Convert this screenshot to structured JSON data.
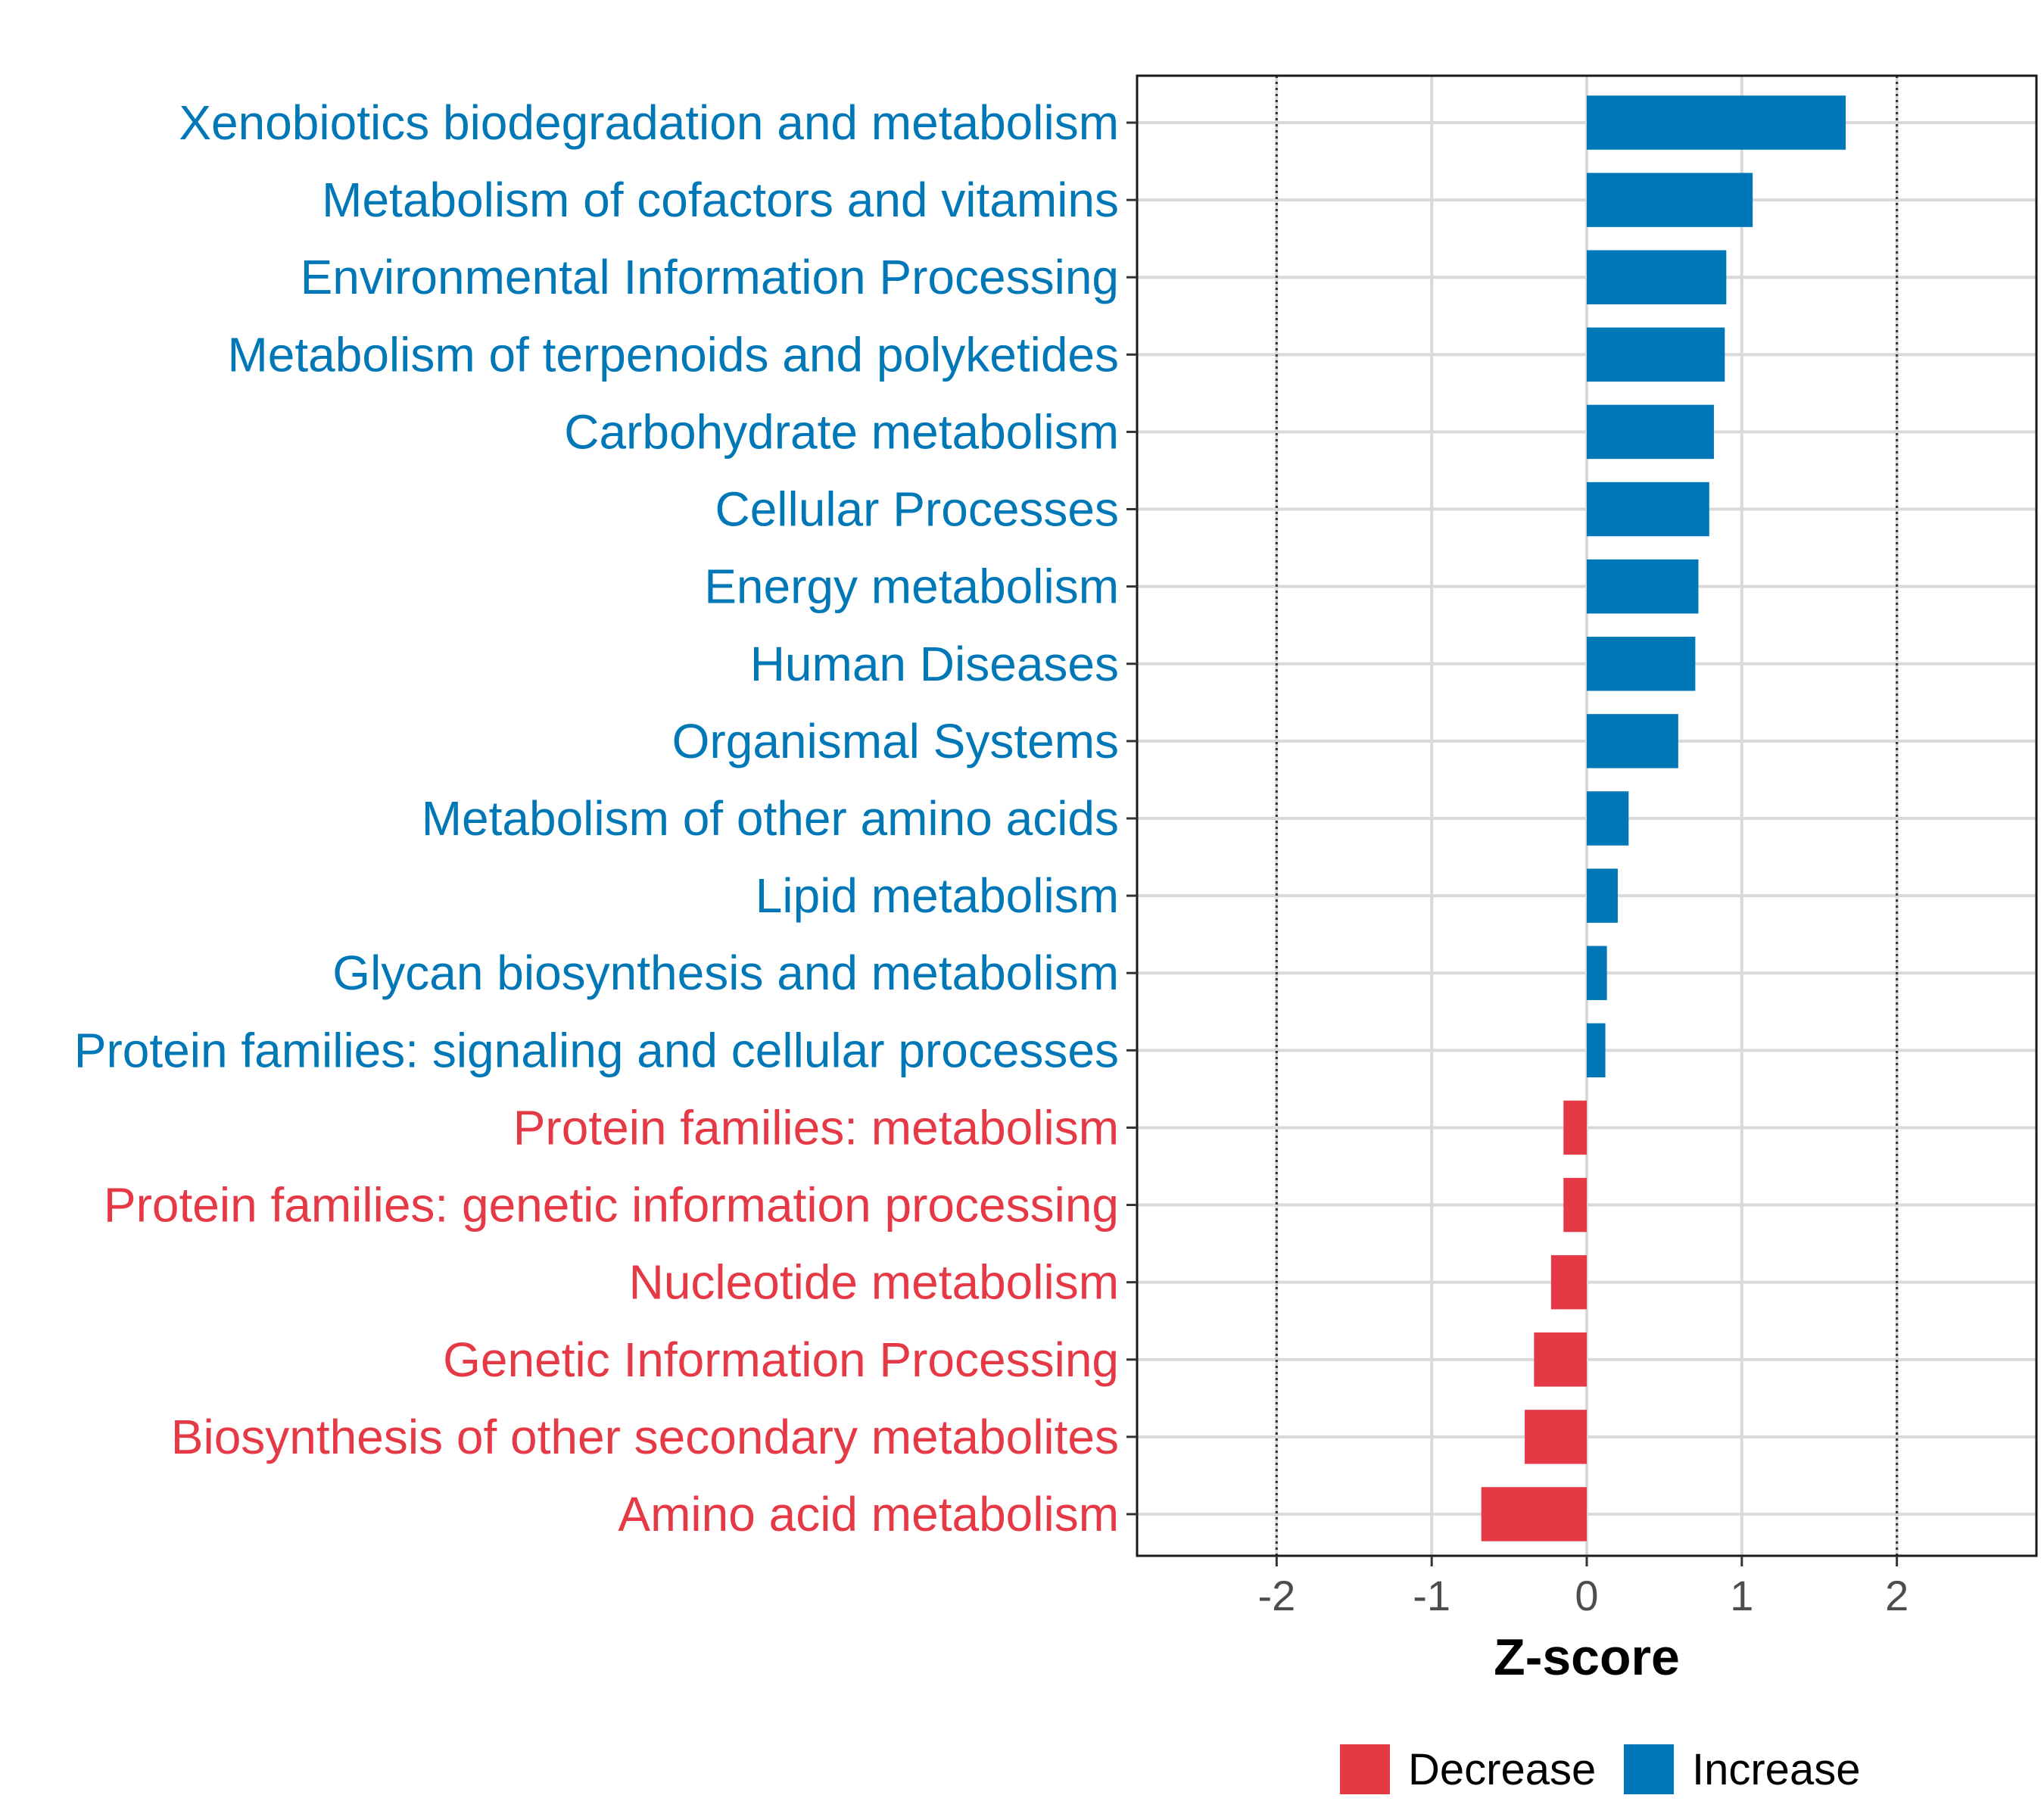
{
  "chart_data": {
    "type": "bar",
    "orientation": "horizontal",
    "title": "",
    "xlabel": "Z-score",
    "ylabel": "",
    "xlim": [
      -2.9,
      2.9
    ],
    "x_ticks": [
      -2,
      -1,
      0,
      1,
      2
    ],
    "x_tick_labels": [
      "-2",
      "-1",
      "0",
      "1",
      "2"
    ],
    "reference_lines": [
      -2,
      2
    ],
    "grid": true,
    "legend_position": "bottom",
    "colors": {
      "Increase": "#0077B6",
      "Decrease": "#E63946"
    },
    "legend": [
      {
        "label": "Decrease",
        "color": "#E63946"
      },
      {
        "label": "Increase",
        "color": "#0077B6"
      }
    ],
    "categories": [
      "Xenobiotics biodegradation and metabolism",
      "Metabolism of cofactors and vitamins",
      "Environmental Information Processing",
      "Metabolism of terpenoids and polyketides",
      "Carbohydrate metabolism",
      "Cellular Processes",
      "Energy metabolism",
      "Human Diseases",
      "Organismal Systems",
      "Metabolism of other amino acids",
      "Lipid metabolism",
      "Glycan biosynthesis and metabolism",
      "Protein families: signaling and cellular processes",
      "Protein families: metabolism",
      "Protein families: genetic information processing",
      "Nucleotide metabolism",
      "Genetic Information Processing",
      "Biosynthesis of other secondary metabolites",
      "Amino acid metabolism"
    ],
    "values": [
      1.67,
      1.07,
      0.9,
      0.89,
      0.82,
      0.79,
      0.72,
      0.7,
      0.59,
      0.27,
      0.2,
      0.13,
      0.12,
      -0.15,
      -0.15,
      -0.23,
      -0.34,
      -0.4,
      -0.68
    ],
    "groups": [
      "Increase",
      "Increase",
      "Increase",
      "Increase",
      "Increase",
      "Increase",
      "Increase",
      "Increase",
      "Increase",
      "Increase",
      "Increase",
      "Increase",
      "Increase",
      "Decrease",
      "Decrease",
      "Decrease",
      "Decrease",
      "Decrease",
      "Decrease"
    ]
  }
}
